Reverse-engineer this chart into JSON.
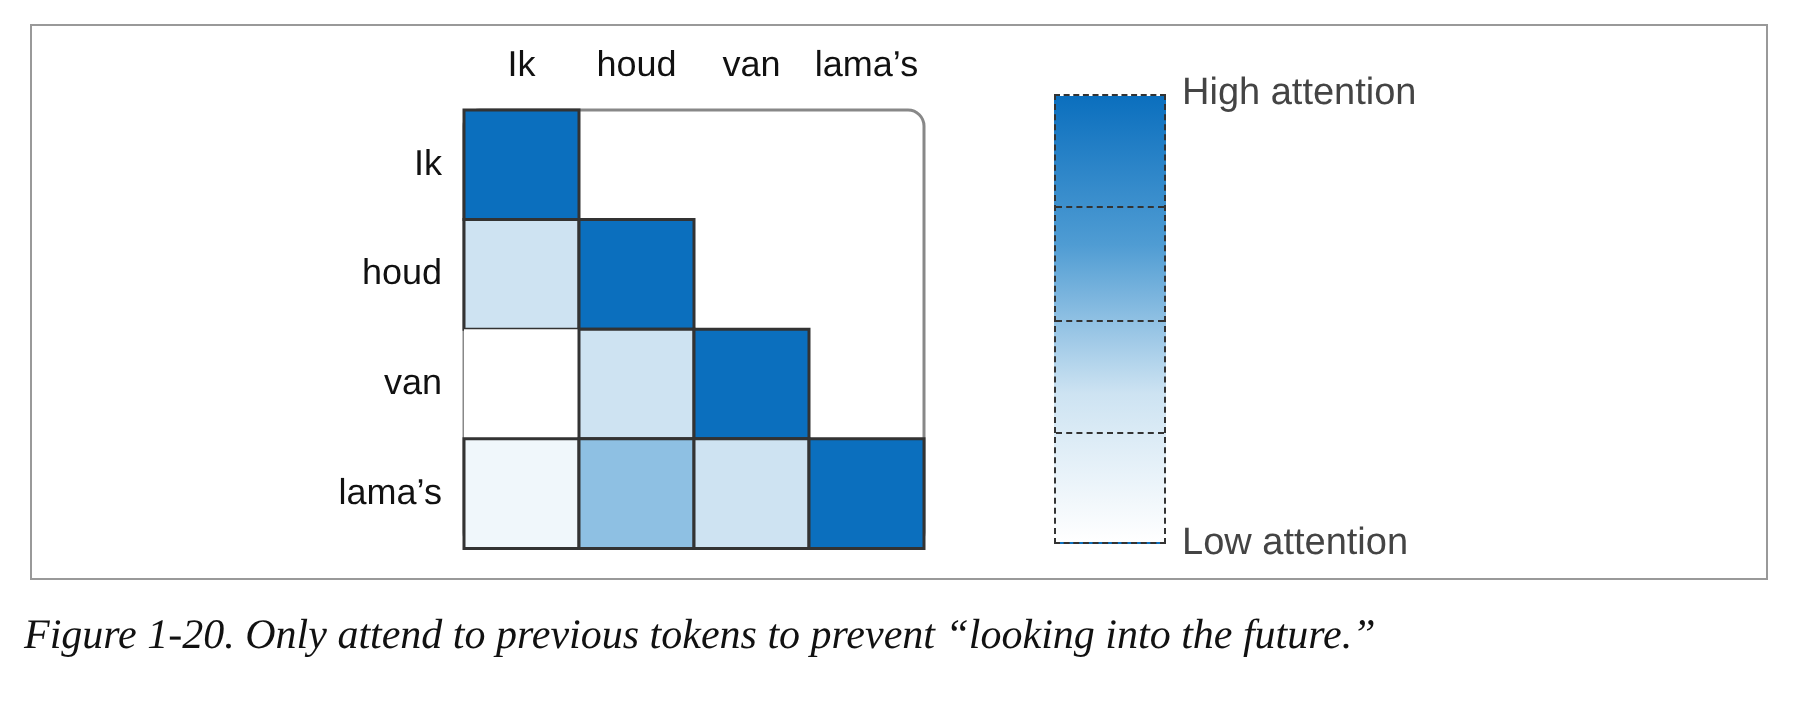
{
  "chart_data": {
    "type": "heatmap",
    "categories": [
      "Ik",
      "houd",
      "van",
      "lama’s"
    ],
    "y_categories": [
      "Ik",
      "houd",
      "van",
      "lama’s"
    ],
    "cells": [
      [
        1,
        null,
        null,
        null
      ],
      [
        0.33,
        1,
        null,
        null
      ],
      [
        0,
        0.33,
        1,
        null
      ],
      [
        0.1,
        0.5,
        0.33,
        1
      ]
    ],
    "clim": [
      0,
      1
    ],
    "cticks": [
      {
        "value": 0,
        "label": "Low attention"
      },
      {
        "value": 1,
        "label": "High attention"
      }
    ],
    "annotations": [
      "Figure 1-20. Only attend to previous tokens to prevent “looking into the future.”"
    ]
  }
}
